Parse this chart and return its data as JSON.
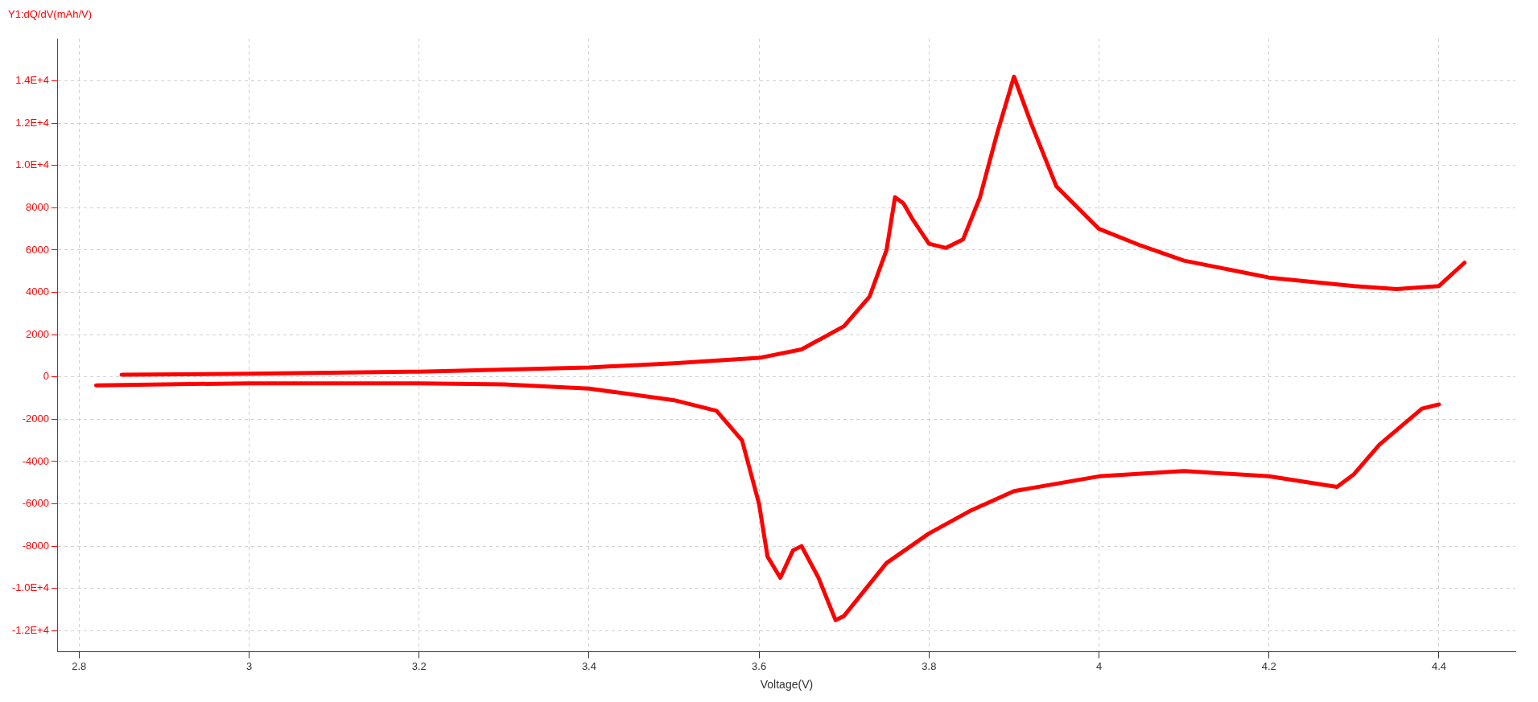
{
  "chart_data": {
    "type": "line",
    "ylabel": "Y1:dQ/dV(mAh/V)",
    "xlabel": "Voltage(V)",
    "series": [
      {
        "color": "#ff0000",
        "x": [
          2.85,
          3.0,
          3.2,
          3.4,
          3.5,
          3.6,
          3.65,
          3.7,
          3.73,
          3.75,
          3.76,
          3.77,
          3.78,
          3.8,
          3.82,
          3.84,
          3.86,
          3.88,
          3.9,
          3.92,
          3.95,
          4.0,
          4.05,
          4.1,
          4.2,
          4.3,
          4.35,
          4.4,
          4.43
        ],
        "values": [
          100,
          150,
          250,
          450,
          650,
          900,
          1300,
          2400,
          3800,
          6000,
          8500,
          8200,
          7500,
          6300,
          6100,
          6500,
          8500,
          11500,
          14200,
          12000,
          9000,
          7000,
          6200,
          5500,
          4700,
          4300,
          4150,
          4300,
          5400
        ]
      },
      {
        "color": "#ff0000",
        "x": [
          2.82,
          3.0,
          3.2,
          3.3,
          3.4,
          3.5,
          3.55,
          3.58,
          3.6,
          3.61,
          3.625,
          3.64,
          3.65,
          3.67,
          3.69,
          3.7,
          3.75,
          3.8,
          3.85,
          3.9,
          4.0,
          4.1,
          4.2,
          4.28,
          4.3,
          4.33,
          4.38,
          4.4
        ],
        "values": [
          -400,
          -300,
          -300,
          -350,
          -550,
          -1100,
          -1600,
          -3000,
          -6000,
          -8500,
          -9500,
          -8200,
          -8000,
          -9500,
          -11500,
          -11300,
          -8800,
          -7400,
          -6300,
          -5400,
          -4700,
          -4450,
          -4700,
          -5200,
          -4600,
          -3200,
          -1500,
          -1300
        ]
      }
    ],
    "xlim": [
      2.775,
      4.49
    ],
    "xticks": [
      2.8,
      3,
      3.2,
      3.4,
      3.6,
      3.8,
      4,
      4.2,
      4.4
    ],
    "ylim": [
      -13000,
      16000
    ],
    "yticks": [
      {
        "value": -12000,
        "label": "-1.2E+4"
      },
      {
        "value": -10000,
        "label": "-1.0E+4"
      },
      -8000,
      -6000,
      -4000,
      -2000,
      0,
      2000,
      4000,
      6000,
      8000,
      {
        "value": 10000,
        "label": "1.0E+4"
      },
      {
        "value": 12000,
        "label": "1.2E+4"
      },
      {
        "value": 14000,
        "label": "1.4E+4"
      }
    ],
    "grid": true,
    "legend": false,
    "marker": "none",
    "line_style": "solid"
  }
}
